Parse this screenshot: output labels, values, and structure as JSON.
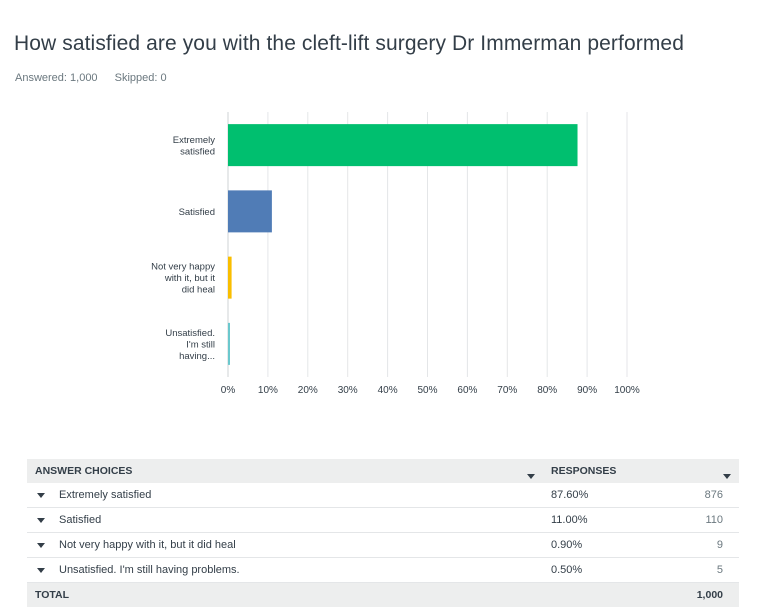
{
  "survey": {
    "question": "How satisfied are you with the cleft-lift surgery Dr Immerman performed",
    "answered": "Answered: 1,000",
    "skipped": "Skipped: 0"
  },
  "chart_data": {
    "type": "bar",
    "orientation": "horizontal",
    "categories": [
      [
        "Extremely",
        "satisfied"
      ],
      [
        "Satisfied"
      ],
      [
        "Not very happy",
        "with it, but it",
        "did heal"
      ],
      [
        "Unsatisfied.",
        "I'm still",
        "having..."
      ]
    ],
    "values": [
      87.6,
      11.0,
      0.9,
      0.5
    ],
    "colors": [
      "#00bf6f",
      "#507cb6",
      "#f9be00",
      "#6bc8cd"
    ],
    "xlim": [
      0,
      100
    ],
    "xticks": [
      "0%",
      "10%",
      "20%",
      "30%",
      "40%",
      "50%",
      "60%",
      "70%",
      "80%",
      "90%",
      "100%"
    ],
    "grid": true
  },
  "table": {
    "headers": [
      "ANSWER CHOICES",
      "RESPONSES"
    ],
    "rows": [
      {
        "choice": "Extremely satisfied",
        "percent": "87.60%",
        "count": "876"
      },
      {
        "choice": "Satisfied",
        "percent": "11.00%",
        "count": "110"
      },
      {
        "choice": "Not very happy with it, but it did heal",
        "percent": "0.90%",
        "count": "9"
      },
      {
        "choice": "Unsatisfied. I'm still having problems.",
        "percent": "0.50%",
        "count": "5"
      }
    ],
    "total_label": "TOTAL",
    "total_count": "1,000"
  }
}
